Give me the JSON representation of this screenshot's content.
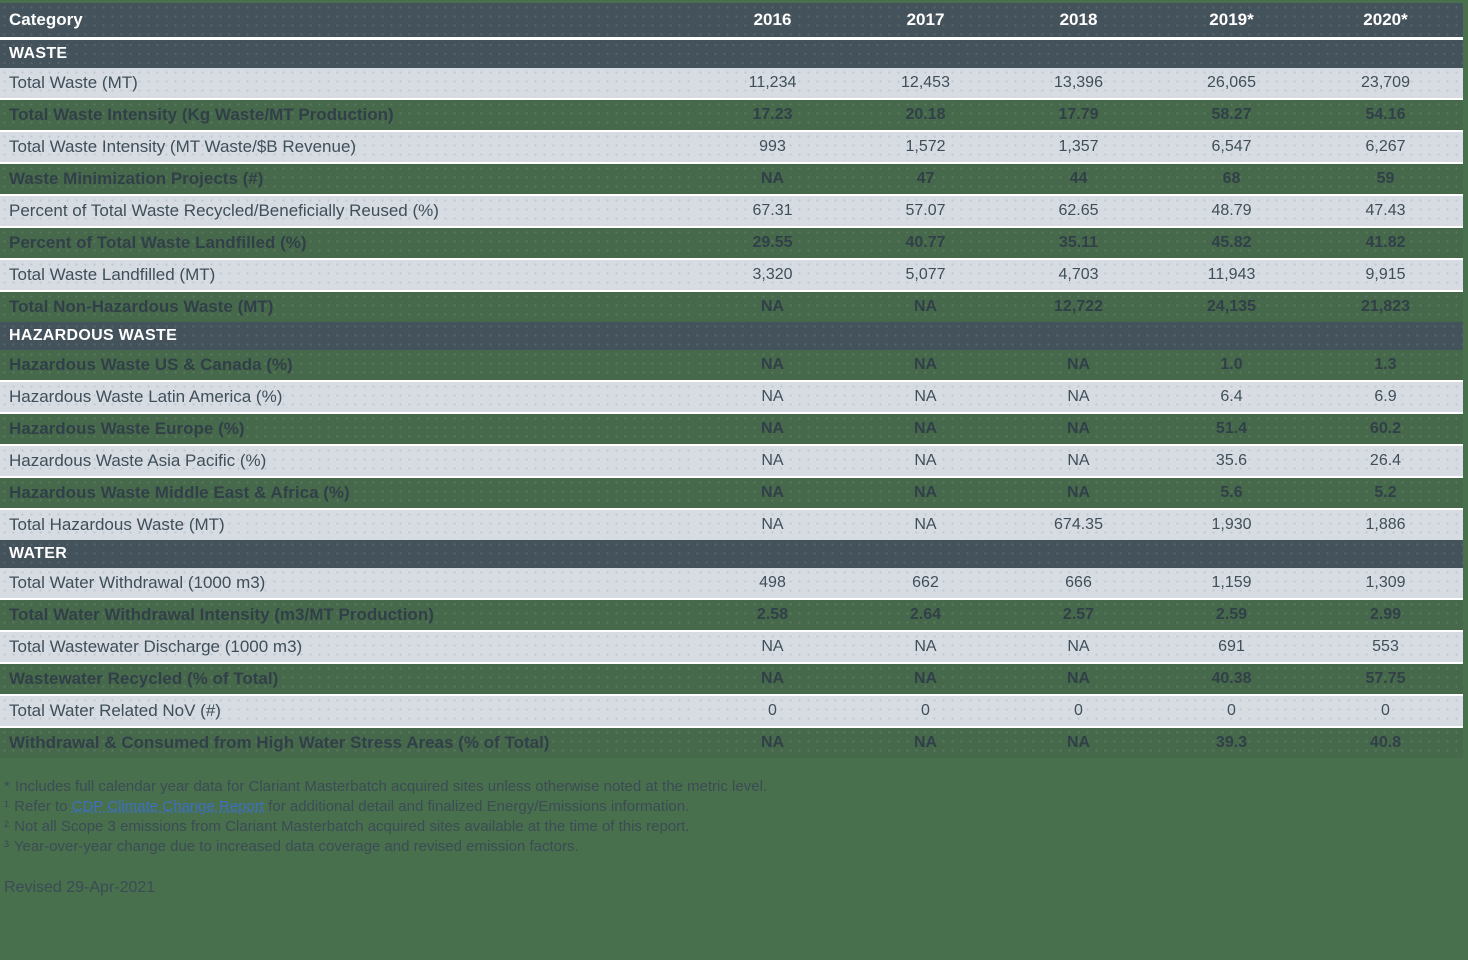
{
  "colors": {
    "page_background": "#48704d",
    "header_band": "#44525b",
    "light_row": "#d6dce2",
    "green_row": "#47694b",
    "dark_text": "#3f4e59",
    "white_text": "#ffffff",
    "link_blue": "#3e6fc0"
  },
  "chart_data": {
    "type": "table",
    "columns": [
      "Category",
      "2016",
      "2017",
      "2018",
      "2019*",
      "2020*"
    ],
    "sections": [
      {
        "title": "WASTE",
        "rows": [
          {
            "label": "Total Waste (MT)",
            "values": [
              "11,234",
              "12,453",
              "13,396",
              "26,065",
              "23,709"
            ],
            "shade": "light"
          },
          {
            "label": "Total Waste Intensity (Kg Waste/MT Production)",
            "values": [
              "17.23",
              "20.18",
              "17.79",
              "58.27",
              "54.16"
            ],
            "shade": "green"
          },
          {
            "label": "Total Waste Intensity (MT Waste/$B Revenue)",
            "values": [
              "993",
              "1,572",
              "1,357",
              "6,547",
              "6,267"
            ],
            "shade": "light"
          },
          {
            "label": "Waste Minimization Projects (#)",
            "values": [
              "NA",
              "47",
              "44",
              "68",
              "59"
            ],
            "shade": "green"
          },
          {
            "label": "Percent of Total Waste Recycled/Beneficially Reused (%)",
            "values": [
              "67.31",
              "57.07",
              "62.65",
              "48.79",
              "47.43"
            ],
            "shade": "light"
          },
          {
            "label": "Percent of Total Waste Landfilled (%)",
            "values": [
              "29.55",
              "40.77",
              "35.11",
              "45.82",
              "41.82"
            ],
            "shade": "green"
          },
          {
            "label": "Total Waste Landfilled (MT)",
            "values": [
              "3,320",
              "5,077",
              "4,703",
              "11,943",
              "9,915"
            ],
            "shade": "light"
          },
          {
            "label": "Total Non-Hazardous Waste (MT)",
            "values": [
              "NA",
              "NA",
              "12,722",
              "24,135",
              "21,823"
            ],
            "shade": "green"
          }
        ]
      },
      {
        "title": "HAZARDOUS WASTE",
        "rows": [
          {
            "label": "Hazardous Waste US & Canada (%)",
            "values": [
              "NA",
              "NA",
              "NA",
              "1.0",
              "1.3"
            ],
            "shade": "green"
          },
          {
            "label": "Hazardous Waste Latin America (%)",
            "values": [
              "NA",
              "NA",
              "NA",
              "6.4",
              "6.9"
            ],
            "shade": "light"
          },
          {
            "label": "Hazardous Waste Europe (%)",
            "values": [
              "NA",
              "NA",
              "NA",
              "51.4",
              "60.2"
            ],
            "shade": "green"
          },
          {
            "label": "Hazardous Waste Asia Pacific (%)",
            "values": [
              "NA",
              "NA",
              "NA",
              "35.6",
              "26.4"
            ],
            "shade": "light"
          },
          {
            "label": "Hazardous Waste Middle East & Africa (%)",
            "values": [
              "NA",
              "NA",
              "NA",
              "5.6",
              "5.2"
            ],
            "shade": "green"
          },
          {
            "label": "Total Hazardous Waste (MT)",
            "values": [
              "NA",
              "NA",
              "674.35",
              "1,930",
              "1,886"
            ],
            "shade": "light"
          }
        ]
      },
      {
        "title": "WATER",
        "rows": [
          {
            "label": "Total Water Withdrawal (1000 m3)",
            "values": [
              "498",
              "662",
              "666",
              "1,159",
              "1,309"
            ],
            "shade": "light"
          },
          {
            "label": "Total Water Withdrawal Intensity (m3/MT Production)",
            "values": [
              "2.58",
              "2.64",
              "2.57",
              "2.59",
              "2.99"
            ],
            "shade": "green"
          },
          {
            "label": "Total Wastewater Discharge (1000 m3)",
            "values": [
              "NA",
              "NA",
              "NA",
              "691",
              "553"
            ],
            "shade": "light"
          },
          {
            "label": "Wastewater Recycled (% of Total)",
            "values": [
              "NA",
              "NA",
              "NA",
              "40.38",
              "57.75"
            ],
            "shade": "green"
          },
          {
            "label": "Total Water Related NoV (#)",
            "values": [
              "0",
              "0",
              "0",
              "0",
              "0"
            ],
            "shade": "light"
          },
          {
            "label": "Withdrawal & Consumed from High Water Stress Areas (% of Total)",
            "values": [
              "NA",
              "NA",
              "NA",
              "39.3",
              "40.8"
            ],
            "shade": "green"
          }
        ]
      }
    ]
  },
  "footnotes": [
    {
      "marker": "*",
      "text": "Includes full calendar year data for Clariant Masterbatch acquired sites unless otherwise noted at the metric level."
    },
    {
      "marker": "¹",
      "text_before_link": "Refer to",
      "link_text": "CDP Climate Change Report",
      "text_after_link": "for additional detail and finalized Energy/Emissions information."
    },
    {
      "marker": "²",
      "text": "Not all Scope 3 emissions from Clariant Masterbatch acquired sites available at the time of this report."
    },
    {
      "marker": "³",
      "text": "Year-over-year change due to increased data coverage and revised emission factors."
    }
  ],
  "revised_label": "Revised 29-Apr-2021"
}
